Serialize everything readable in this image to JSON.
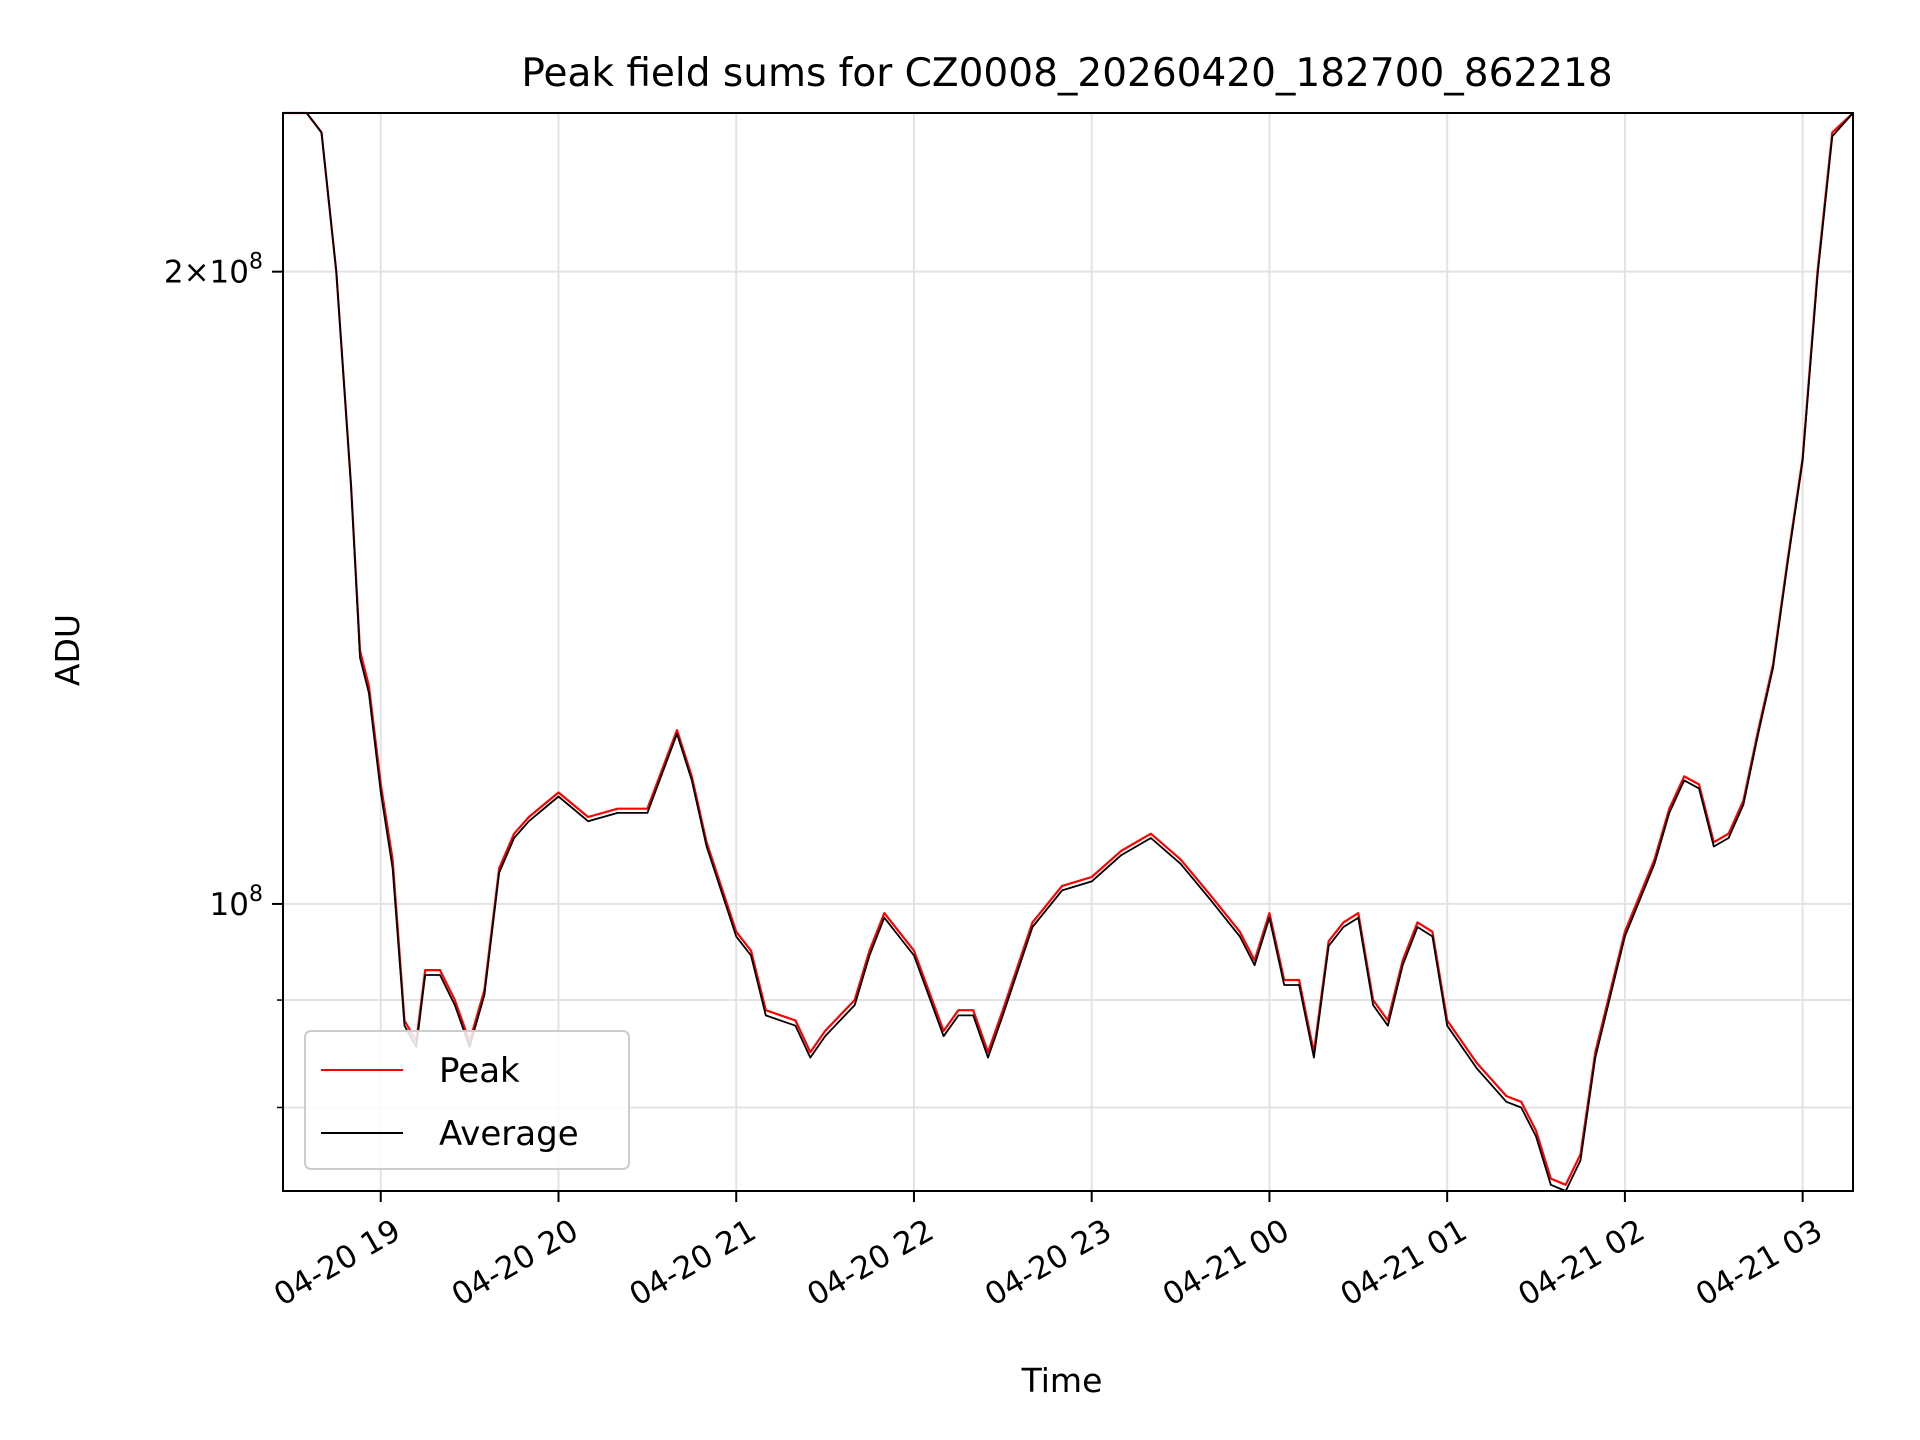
{
  "chart_data": {
    "type": "line",
    "title": "Peak field sums for CZ0008_20260420_182700_862218",
    "xlabel": "Time",
    "ylabel": "ADU",
    "y_scale": "log",
    "xlim": [
      "04-20 18:27",
      "04-21 03:17"
    ],
    "ylim": [
      73000000,
      238000000
    ],
    "x_ticks": [
      "04-20 19",
      "04-20 20",
      "04-20 21",
      "04-20 22",
      "04-20 23",
      "04-21 00",
      "04-21 01",
      "04-21 02",
      "04-21 03"
    ],
    "y_ticks": [
      {
        "value": 100000000,
        "base": "10",
        "exp": "8",
        "label": "10^8"
      },
      {
        "value": 200000000,
        "mant": "2",
        "base": "10",
        "exp": "8",
        "label": "2×10^8"
      }
    ],
    "y_minor_ticks": [
      80000000,
      90000000
    ],
    "grid": true,
    "legend_position": "lower-left",
    "series": [
      {
        "name": "Peak",
        "color": "#ff0000",
        "x": [
          "04-20 18:27",
          "04-20 18:35",
          "04-20 18:40",
          "04-20 18:45",
          "04-20 18:50",
          "04-20 18:53",
          "04-20 18:56",
          "04-20 19:00",
          "04-20 19:04",
          "04-20 19:08",
          "04-20 19:12",
          "04-20 19:15",
          "04-20 19:20",
          "04-20 19:25",
          "04-20 19:30",
          "04-20 19:35",
          "04-20 19:40",
          "04-20 19:45",
          "04-20 19:50",
          "04-20 20:00",
          "04-20 20:10",
          "04-20 20:20",
          "04-20 20:30",
          "04-20 20:40",
          "04-20 20:45",
          "04-20 20:50",
          "04-20 21:00",
          "04-20 21:05",
          "04-20 21:10",
          "04-20 21:20",
          "04-20 21:25",
          "04-20 21:30",
          "04-20 21:40",
          "04-20 21:45",
          "04-20 21:50",
          "04-20 22:00",
          "04-20 22:10",
          "04-20 22:15",
          "04-20 22:20",
          "04-20 22:25",
          "04-20 22:30",
          "04-20 22:40",
          "04-20 22:50",
          "04-20 23:00",
          "04-20 23:10",
          "04-20 23:20",
          "04-20 23:30",
          "04-20 23:40",
          "04-20 23:50",
          "04-20 23:55",
          "04-21 00:00",
          "04-21 00:05",
          "04-21 00:10",
          "04-21 00:15",
          "04-21 00:20",
          "04-21 00:25",
          "04-21 00:30",
          "04-21 00:35",
          "04-21 00:40",
          "04-21 00:45",
          "04-21 00:50",
          "04-21 00:55",
          "04-21 01:00",
          "04-21 01:10",
          "04-21 01:20",
          "04-21 01:25",
          "04-21 01:30",
          "04-21 01:35",
          "04-21 01:40",
          "04-21 01:45",
          "04-21 01:50",
          "04-21 02:00",
          "04-21 02:10",
          "04-21 02:15",
          "04-21 02:20",
          "04-21 02:25",
          "04-21 02:30",
          "04-21 02:35",
          "04-21 02:40",
          "04-21 02:45",
          "04-21 02:50",
          "04-21 02:55",
          "04-21 03:00",
          "04-21 03:05",
          "04-21 03:10",
          "04-21 03:17"
        ],
        "values": [
          238000000,
          238000000,
          233000000,
          200000000,
          158000000,
          132000000,
          127000000,
          114000000,
          105000000,
          88000000,
          86000000,
          93000000,
          93000000,
          90000000,
          86000000,
          91000000,
          104000000,
          108000000,
          110000000,
          113000000,
          110000000,
          111000000,
          111000000,
          121000000,
          115000000,
          107000000,
          97000000,
          95000000,
          89000000,
          88000000,
          85000000,
          87000000,
          90000000,
          95000000,
          99000000,
          95000000,
          87000000,
          89000000,
          89000000,
          85000000,
          89000000,
          98000000,
          102000000,
          103000000,
          106000000,
          108000000,
          105000000,
          101000000,
          97000000,
          94000000,
          99000000,
          92000000,
          92000000,
          85000000,
          96000000,
          98000000,
          99000000,
          90000000,
          88000000,
          94000000,
          98000000,
          97000000,
          88000000,
          84000000,
          81000000,
          80500000,
          78000000,
          74000000,
          73500000,
          76000000,
          85000000,
          97000000,
          105000000,
          111000000,
          115000000,
          114000000,
          107000000,
          108000000,
          112000000,
          121000000,
          130000000,
          146000000,
          163000000,
          200000000,
          233000000,
          238000000
        ]
      },
      {
        "name": "Average",
        "color": "#000000",
        "x": [
          "04-20 18:27",
          "04-20 18:35",
          "04-20 18:40",
          "04-20 18:45",
          "04-20 18:50",
          "04-20 18:53",
          "04-20 18:56",
          "04-20 19:00",
          "04-20 19:04",
          "04-20 19:08",
          "04-20 19:12",
          "04-20 19:15",
          "04-20 19:20",
          "04-20 19:25",
          "04-20 19:30",
          "04-20 19:35",
          "04-20 19:40",
          "04-20 19:45",
          "04-20 19:50",
          "04-20 20:00",
          "04-20 20:10",
          "04-20 20:20",
          "04-20 20:30",
          "04-20 20:40",
          "04-20 20:45",
          "04-20 20:50",
          "04-20 21:00",
          "04-20 21:05",
          "04-20 21:10",
          "04-20 21:20",
          "04-20 21:25",
          "04-20 21:30",
          "04-20 21:40",
          "04-20 21:45",
          "04-20 21:50",
          "04-20 22:00",
          "04-20 22:10",
          "04-20 22:15",
          "04-20 22:20",
          "04-20 22:25",
          "04-20 22:30",
          "04-20 22:40",
          "04-20 22:50",
          "04-20 23:00",
          "04-20 23:10",
          "04-20 23:20",
          "04-20 23:30",
          "04-20 23:40",
          "04-20 23:50",
          "04-20 23:55",
          "04-21 00:00",
          "04-21 00:05",
          "04-21 00:10",
          "04-21 00:15",
          "04-21 00:20",
          "04-21 00:25",
          "04-21 00:30",
          "04-21 00:35",
          "04-21 00:40",
          "04-21 00:45",
          "04-21 00:50",
          "04-21 00:55",
          "04-21 01:00",
          "04-21 01:10",
          "04-21 01:20",
          "04-21 01:25",
          "04-21 01:30",
          "04-21 01:35",
          "04-21 01:40",
          "04-21 01:45",
          "04-21 01:50",
          "04-21 02:00",
          "04-21 02:10",
          "04-21 02:15",
          "04-21 02:20",
          "04-21 02:25",
          "04-21 02:30",
          "04-21 02:35",
          "04-21 02:40",
          "04-21 02:45",
          "04-21 02:50",
          "04-21 02:55",
          "04-21 03:00",
          "04-21 03:05",
          "04-21 03:10",
          "04-21 03:17"
        ],
        "values": [
          238000000,
          238000000,
          233000000,
          200000000,
          158000000,
          131000000,
          126000000,
          113000000,
          104000000,
          87500000,
          85500000,
          92500000,
          92500000,
          89500000,
          85500000,
          90500000,
          103500000,
          107500000,
          109500000,
          112500000,
          109500000,
          110500000,
          110500000,
          120500000,
          114500000,
          106500000,
          96500000,
          94500000,
          88500000,
          87500000,
          84500000,
          86500000,
          89500000,
          94500000,
          98500000,
          94500000,
          86500000,
          88500000,
          88500000,
          84500000,
          88500000,
          97500000,
          101500000,
          102500000,
          105500000,
          107500000,
          104500000,
          100500000,
          96500000,
          93500000,
          98500000,
          91500000,
          91500000,
          84500000,
          95500000,
          97500000,
          98500000,
          89500000,
          87500000,
          93500000,
          97500000,
          96500000,
          87500000,
          83500000,
          80500000,
          80000000,
          77500000,
          73500000,
          73000000,
          75500000,
          84500000,
          96500000,
          104500000,
          110500000,
          114500000,
          113500000,
          106500000,
          107500000,
          111500000,
          120500000,
          129500000,
          145500000,
          162500000,
          199000000,
          232000000,
          238000000
        ]
      }
    ]
  }
}
